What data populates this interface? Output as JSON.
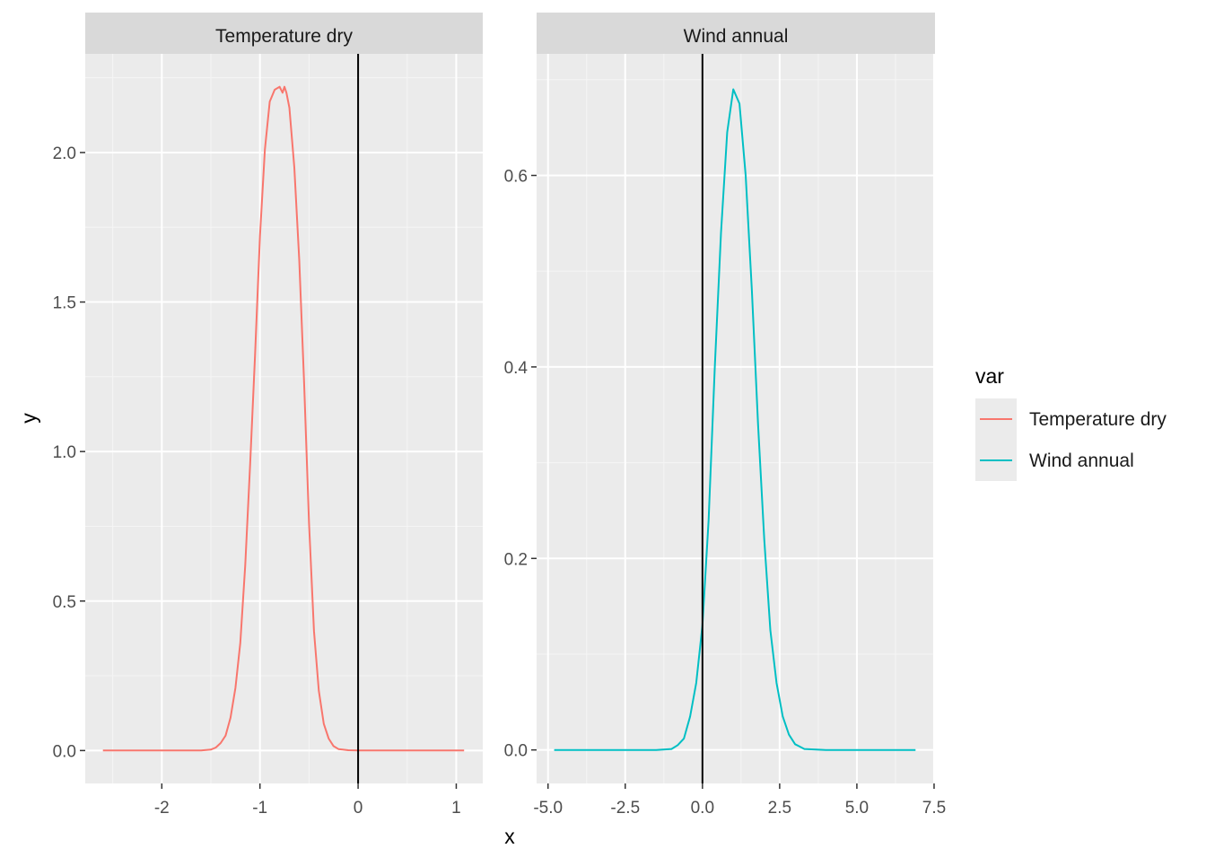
{
  "chart_data": {
    "type": "line",
    "xlabel": "x",
    "ylabel": "y",
    "legend": {
      "title": "var",
      "placement": "right",
      "entries": [
        {
          "label": "Temperature dry",
          "color": "#F8766D"
        },
        {
          "label": "Wind annual",
          "color": "#00BFC4"
        }
      ]
    },
    "vline_x": 0,
    "panels": [
      {
        "strip": "Temperature dry",
        "color": "#F8766D",
        "xlim": [
          -2.78,
          1.27
        ],
        "ylim": [
          -0.11,
          2.33
        ],
        "xticks": [
          -2,
          -1,
          0,
          1
        ],
        "xtick_labels": [
          "-2",
          "-1",
          "0",
          "1"
        ],
        "yticks": [
          0,
          0.5,
          1,
          1.5,
          2
        ],
        "ytick_labels": [
          "0.0",
          "0.5",
          "1.0",
          "1.5",
          "2.0"
        ],
        "series": {
          "name": "Temperature dry",
          "x": [
            -2.6,
            -2.2,
            -1.8,
            -1.6,
            -1.5,
            -1.45,
            -1.4,
            -1.35,
            -1.3,
            -1.25,
            -1.2,
            -1.15,
            -1.1,
            -1.05,
            -1.0,
            -0.95,
            -0.9,
            -0.85,
            -0.8,
            -0.77,
            -0.75,
            -0.73,
            -0.7,
            -0.65,
            -0.6,
            -0.55,
            -0.5,
            -0.45,
            -0.4,
            -0.35,
            -0.3,
            -0.25,
            -0.2,
            -0.1,
            0.0,
            0.3,
            0.6,
            1.08
          ],
          "y": [
            0,
            0,
            0,
            0,
            0.003,
            0.01,
            0.025,
            0.05,
            0.11,
            0.21,
            0.36,
            0.62,
            0.96,
            1.32,
            1.72,
            2.01,
            2.17,
            2.21,
            2.22,
            2.2,
            2.22,
            2.2,
            2.15,
            1.95,
            1.64,
            1.23,
            0.76,
            0.4,
            0.2,
            0.09,
            0.04,
            0.015,
            0.005,
            0.001,
            0,
            0,
            0,
            0
          ]
        }
      },
      {
        "strip": "Wind annual",
        "color": "#00BFC4",
        "xlim": [
          -5.37,
          7.53
        ],
        "ylim": [
          -0.035,
          0.727
        ],
        "xticks": [
          -5,
          -2.5,
          0,
          2.5,
          5,
          7.5
        ],
        "xtick_labels": [
          "-5.0",
          "-2.5",
          "0.0",
          "2.5",
          "5.0",
          "7.5"
        ],
        "yticks": [
          0,
          0.2,
          0.4,
          0.6
        ],
        "ytick_labels": [
          "0.0",
          "0.2",
          "0.4",
          "0.6"
        ],
        "series": {
          "name": "Wind annual",
          "x": [
            -4.8,
            -3.0,
            -1.5,
            -1.0,
            -0.8,
            -0.6,
            -0.4,
            -0.2,
            0.0,
            0.2,
            0.4,
            0.6,
            0.8,
            1.0,
            1.2,
            1.4,
            1.6,
            1.8,
            2.0,
            2.2,
            2.4,
            2.6,
            2.8,
            3.0,
            3.3,
            4.0,
            5.5,
            6.9
          ],
          "y": [
            0,
            0,
            0,
            0.001,
            0.005,
            0.012,
            0.035,
            0.07,
            0.13,
            0.24,
            0.4,
            0.54,
            0.645,
            0.69,
            0.675,
            0.6,
            0.48,
            0.34,
            0.22,
            0.125,
            0.07,
            0.035,
            0.016,
            0.006,
            0.001,
            0,
            0,
            0
          ]
        }
      }
    ]
  }
}
